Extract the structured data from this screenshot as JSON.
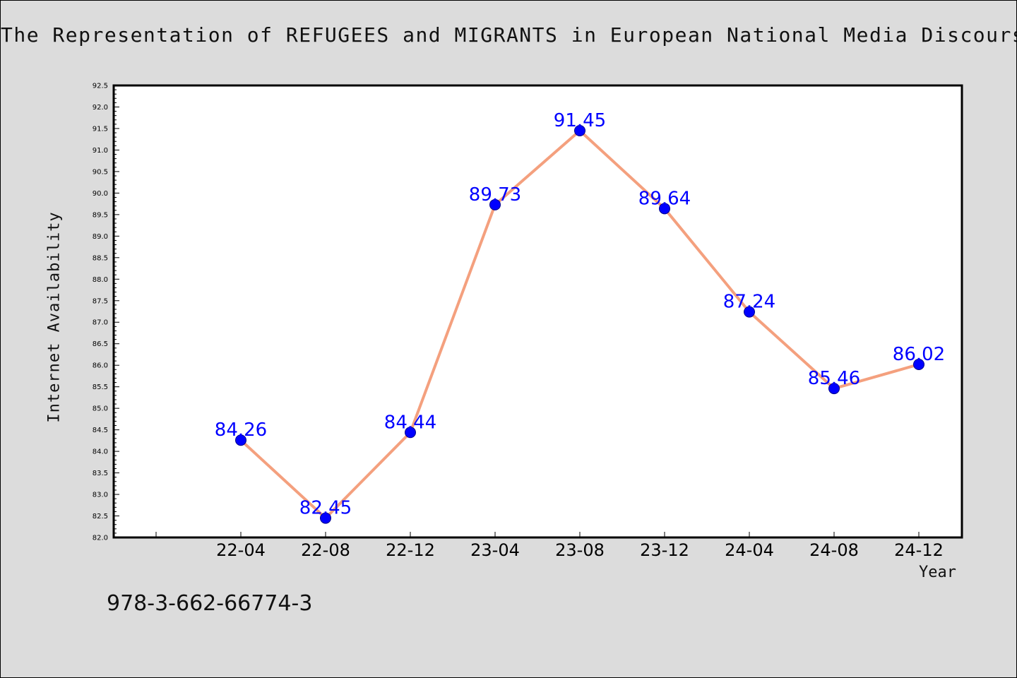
{
  "chart_data": {
    "type": "line",
    "title": "The Representation of REFUGEES and MIGRANTS in European National Media Discourse",
    "xlabel": "Year",
    "ylabel": "Internet Availability",
    "categories": [
      "22-04",
      "22-08",
      "22-12",
      "23-04",
      "23-08",
      "23-12",
      "24-04",
      "24-08",
      "24-12"
    ],
    "series": [
      {
        "values": [
          84.26,
          82.45,
          84.44,
          89.73,
          91.45,
          89.64,
          87.24,
          85.46,
          86.02
        ]
      }
    ],
    "data_labels": [
      "84.26",
      "82.45",
      "84.44",
      "89.73",
      "91.45",
      "89.64",
      "87.24",
      "85.46",
      "86.02"
    ],
    "ylim": [
      82.0,
      92.5
    ],
    "yticks": [
      "82.0",
      "82.5",
      "83.0",
      "83.5",
      "84.0",
      "84.5",
      "85.0",
      "85.5",
      "86.0",
      "86.5",
      "87.0",
      "87.5",
      "88.0",
      "88.5",
      "89.0",
      "89.5",
      "90.0",
      "90.5",
      "91.0",
      "91.5",
      "92.0",
      "92.5"
    ],
    "grid": false,
    "line_color": "#f4a07e",
    "marker_color": "#0000ff",
    "label_color": "#0000ff"
  },
  "footnote": "978-3-662-66774-3"
}
